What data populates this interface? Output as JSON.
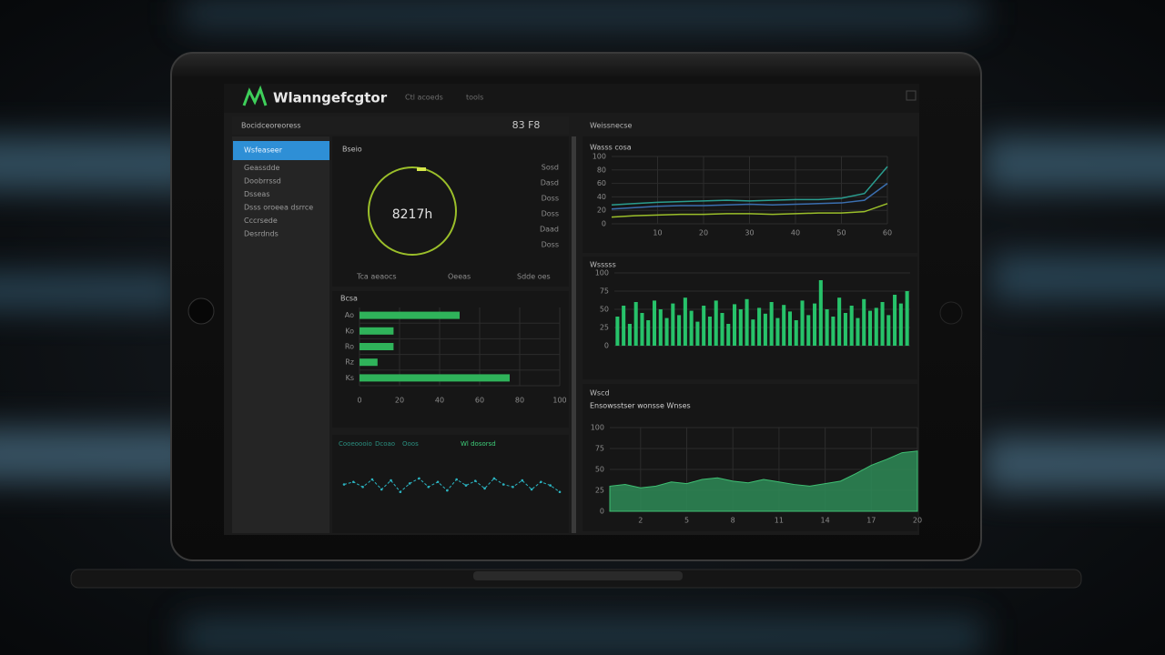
{
  "header": {
    "logo": "Wlanngefcgtor",
    "nav": [
      "Ctl acoeds",
      "tools"
    ]
  },
  "sidebar": {
    "title": "Bocidceoreoress",
    "items": [
      "Wsfeaseer",
      "Geassdde",
      "Doobrrssd",
      "Dsseas",
      "Dsss oroeea dsrrce",
      "Cccrsede",
      "Desrdnds"
    ]
  },
  "toolbar": {
    "left": "83 F8",
    "right": "Weissnecse"
  },
  "gauge": {
    "title": "Bseio",
    "value_label": "8217h",
    "scale_labels": [
      "Sosd",
      "Dasd",
      "Doss",
      "Doss",
      "Daad",
      "Doss"
    ],
    "footer": [
      "Tca aeaocs",
      "Oeeas",
      "Sdde oes"
    ]
  },
  "hbar": {
    "type": "bar",
    "orientation": "horizontal",
    "title": "Bcsa",
    "color": "#2fb35a",
    "categories": [
      "Ao",
      "Ko",
      "Ro",
      "Rz",
      "Ks"
    ],
    "values": [
      50,
      17,
      17,
      9,
      75
    ],
    "xlim": [
      0,
      100
    ],
    "xticks": [
      0,
      20,
      40,
      60,
      80,
      100
    ],
    "grid": true
  },
  "wave": {
    "type": "line",
    "color": "#2bb3c0",
    "legend": [
      "Cooeoooio",
      "Dcoao",
      "Ooos",
      "Wl dosorsd"
    ],
    "values": [
      50,
      55,
      45,
      60,
      40,
      58,
      35,
      52,
      62,
      45,
      55,
      38,
      60,
      48,
      57,
      42,
      62,
      50,
      45,
      58,
      40,
      55,
      48,
      35
    ],
    "ylim": [
      0,
      100
    ]
  },
  "trend": {
    "type": "line",
    "title": "Wasss cosa",
    "grid": true,
    "x": [
      0,
      5,
      10,
      15,
      20,
      25,
      30,
      35,
      40,
      45,
      50,
      55,
      60
    ],
    "xlim": [
      0,
      60
    ],
    "xticks": [
      10,
      20,
      30,
      40,
      50,
      60
    ],
    "ylim": [
      0,
      100
    ],
    "yticks": [
      0,
      20,
      40,
      60,
      80,
      100
    ],
    "series": [
      {
        "color": "#2a9d8f",
        "values": [
          28,
          30,
          32,
          33,
          34,
          35,
          34,
          35,
          36,
          36,
          38,
          45,
          85
        ]
      },
      {
        "color": "#3b6fb0",
        "values": [
          22,
          24,
          26,
          27,
          27,
          28,
          29,
          28,
          29,
          30,
          31,
          35,
          60
        ]
      },
      {
        "color": "#9bbf2a",
        "values": [
          10,
          12,
          13,
          14,
          14,
          15,
          15,
          14,
          15,
          16,
          16,
          18,
          30
        ]
      }
    ]
  },
  "activity": {
    "type": "bar",
    "title": "Wsssss",
    "color": "#27c26a",
    "grid": true,
    "values": [
      40,
      55,
      30,
      60,
      45,
      35,
      62,
      50,
      38,
      58,
      42,
      66,
      48,
      33,
      55,
      40,
      62,
      45,
      30,
      57,
      50,
      64,
      36,
      52,
      44,
      60,
      38,
      56,
      47,
      35,
      62,
      42,
      58,
      90,
      50,
      40,
      66,
      45,
      55,
      38,
      64,
      48,
      52,
      60,
      42,
      70,
      58,
      75
    ],
    "ylim": [
      0,
      100
    ],
    "yticks": [
      0,
      25,
      50,
      75,
      100
    ]
  },
  "volume": {
    "type": "area",
    "title": "Ensowsstser wonsse Wnses",
    "subtitle": "Wscd",
    "color": "#2e8b57",
    "grid": true,
    "x": [
      0,
      1,
      2,
      3,
      4,
      5,
      6,
      7,
      8,
      9,
      10,
      11,
      12,
      13,
      14,
      15,
      16,
      17,
      18,
      19,
      20
    ],
    "values": [
      30,
      32,
      28,
      30,
      35,
      33,
      38,
      40,
      36,
      34,
      38,
      35,
      32,
      30,
      33,
      36,
      45,
      55,
      62,
      70,
      72
    ],
    "xlim": [
      0,
      20
    ],
    "xticks": [
      2,
      5,
      8,
      11,
      14,
      17,
      20
    ],
    "ylim": [
      0,
      100
    ],
    "yticks": [
      0,
      25,
      50,
      75,
      100
    ]
  }
}
